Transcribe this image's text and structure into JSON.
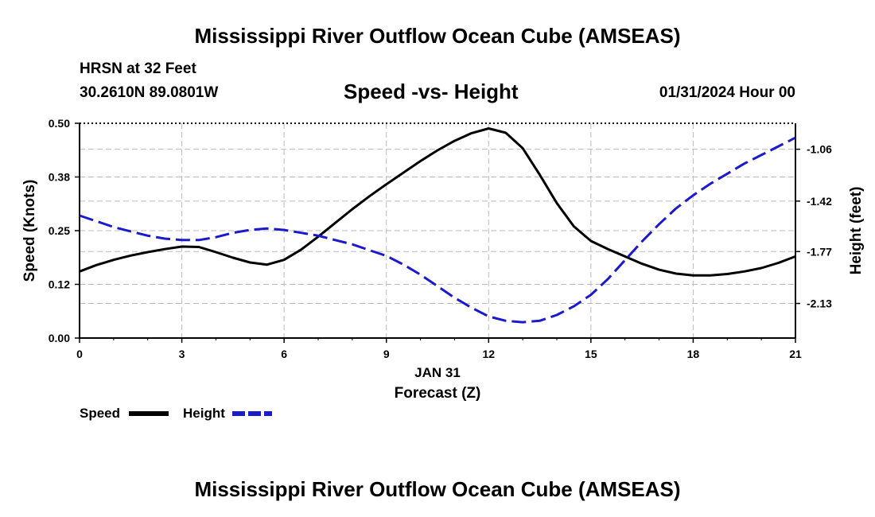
{
  "page": {
    "title": "Mississippi River Outflow Ocean Cube (AMSEAS)",
    "footer_title": "Mississippi River Outflow Ocean Cube (AMSEAS)",
    "station": "HRSN at 32 Feet",
    "coordinates": "30.2610N  89.0801W",
    "chart_title": "Speed -vs- Height",
    "datetime": "01/31/2024 Hour 00"
  },
  "legend": {
    "speed_label": "Speed",
    "height_label": "Height"
  },
  "colors": {
    "speed": "#000000",
    "height": "#1a1acc",
    "grid": "#bbbbbb"
  },
  "chart_data": {
    "type": "line",
    "title": "Speed -vs- Height",
    "xlabel": "Forecast (Z)",
    "xlabel_date": "JAN 31",
    "ylabel": "Speed (Knots)",
    "y2label": "Height (feet)",
    "xlim": [
      0,
      21
    ],
    "ylim": [
      0,
      0.5
    ],
    "y2lim": [
      -2.37,
      -0.88
    ],
    "x_ticks": [
      0,
      3,
      6,
      9,
      12,
      15,
      18,
      21
    ],
    "x_tick_labels": [
      "0",
      "3",
      "6",
      "9",
      "12",
      "15",
      "18",
      "21"
    ],
    "y_ticks": [
      0,
      0.125,
      0.25,
      0.375,
      0.5
    ],
    "y_tick_labels": [
      "0.00",
      "0.12",
      "0.25",
      "0.38",
      "0.50"
    ],
    "y2_ticks": [
      -2.13,
      -1.77,
      -1.42,
      -1.06
    ],
    "y2_tick_labels": [
      "-2.13",
      "-1.77",
      "-1.42",
      "-1.06"
    ],
    "grid": true,
    "series": [
      {
        "name": "Speed",
        "axis": "left",
        "style": "solid",
        "x": [
          0,
          0.5,
          1,
          1.5,
          2,
          2.5,
          3,
          3.5,
          4,
          4.5,
          5,
          5.5,
          6,
          6.5,
          7,
          7.5,
          8,
          8.5,
          9,
          9.5,
          10,
          10.5,
          11,
          11.5,
          12,
          12.5,
          13,
          13.5,
          14,
          14.5,
          15,
          15.5,
          16,
          16.5,
          17,
          17.5,
          18,
          18.5,
          19,
          19.5,
          20,
          20.5,
          21
        ],
        "values": [
          0.155,
          0.17,
          0.182,
          0.192,
          0.2,
          0.207,
          0.213,
          0.212,
          0.2,
          0.187,
          0.176,
          0.171,
          0.182,
          0.206,
          0.236,
          0.268,
          0.3,
          0.33,
          0.358,
          0.385,
          0.412,
          0.437,
          0.459,
          0.477,
          0.488,
          0.478,
          0.442,
          0.38,
          0.314,
          0.26,
          0.226,
          0.207,
          0.19,
          0.173,
          0.159,
          0.15,
          0.146,
          0.146,
          0.149,
          0.155,
          0.163,
          0.175,
          0.19
        ]
      },
      {
        "name": "Height",
        "axis": "right",
        "style": "dashed",
        "x": [
          0,
          0.5,
          1,
          1.5,
          2,
          2.5,
          3,
          3.5,
          4,
          4.5,
          5,
          5.5,
          6,
          6.5,
          7,
          7.5,
          8,
          8.5,
          9,
          9.5,
          10,
          10.5,
          11,
          11.5,
          12,
          12.5,
          13,
          13.5,
          14,
          14.5,
          15,
          15.5,
          16,
          16.5,
          17,
          17.5,
          18,
          18.5,
          19,
          19.5,
          20,
          20.5,
          21
        ],
        "values": [
          -1.52,
          -1.56,
          -1.6,
          -1.63,
          -1.66,
          -1.68,
          -1.69,
          -1.69,
          -1.67,
          -1.64,
          -1.62,
          -1.61,
          -1.62,
          -1.64,
          -1.66,
          -1.69,
          -1.72,
          -1.76,
          -1.8,
          -1.86,
          -1.93,
          -2.01,
          -2.09,
          -2.16,
          -2.22,
          -2.25,
          -2.26,
          -2.25,
          -2.21,
          -2.15,
          -2.07,
          -1.96,
          -1.83,
          -1.7,
          -1.58,
          -1.47,
          -1.38,
          -1.3,
          -1.23,
          -1.16,
          -1.1,
          -1.04,
          -0.98
        ]
      }
    ]
  }
}
